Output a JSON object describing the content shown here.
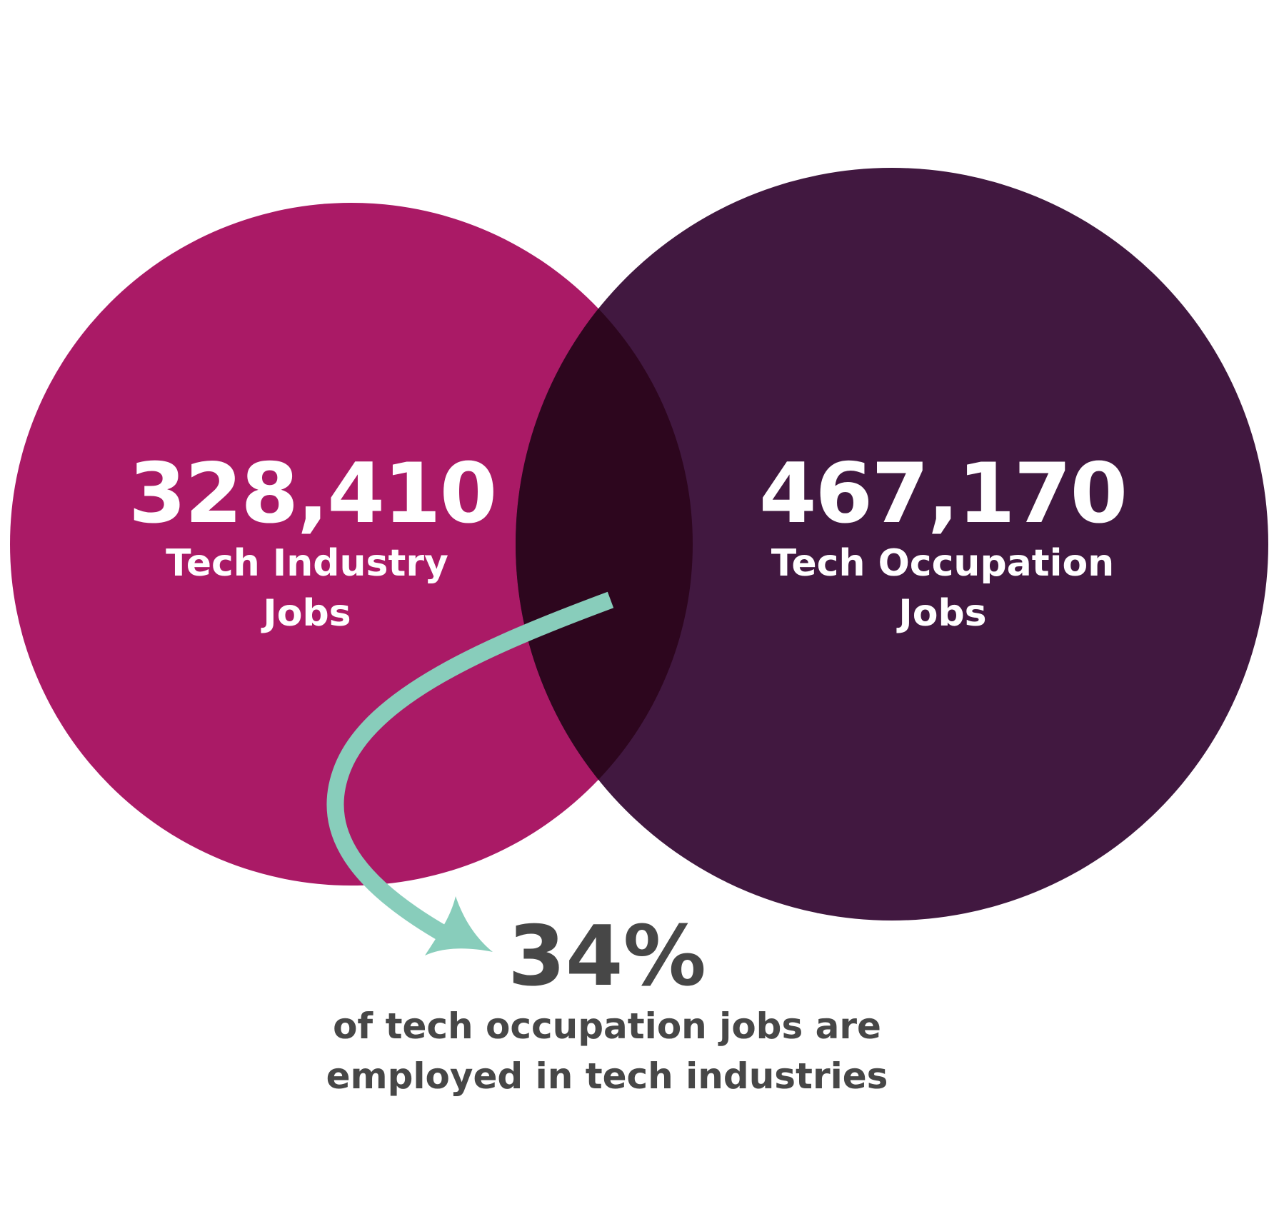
{
  "colors": {
    "left_circle": "#AA1A66",
    "right_circle": "#411840",
    "overlap": "#2D061E",
    "arrow": "#88CDBB",
    "stat_text": "#474747",
    "circle_text": "#FFFFFF"
  },
  "left_set": {
    "value": "328,410",
    "label_line1": "Tech Industry",
    "label_line2": "Jobs"
  },
  "right_set": {
    "value": "467,170",
    "label_line1": "Tech Occupation",
    "label_line2": "Jobs"
  },
  "intersection": {
    "value": "34%",
    "caption_line1": "of tech occupation jobs are",
    "caption_line2": "employed in tech industries"
  }
}
